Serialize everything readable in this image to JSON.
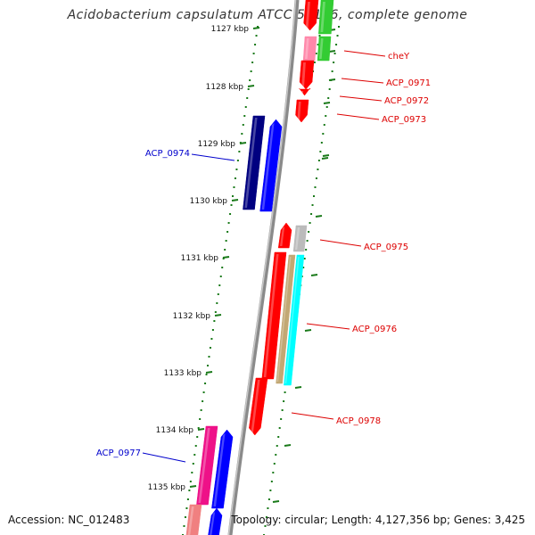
{
  "title": "Acidobacterium capsulatum ATCC 51196, complete genome",
  "footer": {
    "accession": "Accession: NC_012483",
    "stats": "Topology: circular; Length: 4,127,356 bp; Genes: 3,425"
  },
  "ticks": [
    "1127 kbp",
    "1128 kbp",
    "1129 kbp",
    "1130 kbp",
    "1131 kbp",
    "1132 kbp",
    "1133 kbp",
    "1134 kbp",
    "1135 kbp"
  ],
  "gene_labels": [
    {
      "text": "cheY",
      "color": "#dd0000"
    },
    {
      "text": "ACP_0971",
      "color": "#dd0000"
    },
    {
      "text": "ACP_0972",
      "color": "#dd0000"
    },
    {
      "text": "ACP_0973",
      "color": "#dd0000"
    },
    {
      "text": "ACP_0974",
      "color": "#0000cc"
    },
    {
      "text": "ACP_0975",
      "color": "#dd0000"
    },
    {
      "text": "ACP_0976",
      "color": "#dd0000"
    },
    {
      "text": "ACP_0977",
      "color": "#0000cc"
    },
    {
      "text": "ACP_0978",
      "color": "#dd0000"
    }
  ],
  "colors": {
    "backbone": "#8a8a8a",
    "tick": "#1a7a1a",
    "red": "#ff0000",
    "blue": "#0000ff",
    "navy": "#000080",
    "green": "#33cc33",
    "pink": "#ff88aa",
    "magenta": "#ee1188",
    "salmon": "#f08080",
    "gray": "#bbbbbb",
    "tan": "#c2a874",
    "cyan": "#00ffff"
  }
}
